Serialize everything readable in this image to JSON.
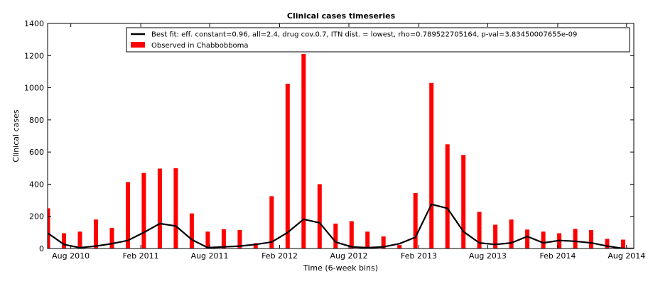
{
  "chart_data": {
    "type": "bar",
    "title": "Clinical cases timeseries",
    "xlabel": "Time (6-week bins)",
    "ylabel": "Clinical cases",
    "ylim": [
      0,
      1400
    ],
    "yticks": [
      0,
      200,
      400,
      600,
      800,
      1000,
      1200,
      1400
    ],
    "grid": false,
    "legend_position": "top-right",
    "date_range": [
      "2010-06-01",
      "2014-08-20"
    ],
    "xtick_labels": [
      {
        "label": "Aug 2010",
        "date": "2010-08-01"
      },
      {
        "label": "Feb 2011",
        "date": "2011-02-01"
      },
      {
        "label": "Aug 2011",
        "date": "2011-08-01"
      },
      {
        "label": "Feb 2012",
        "date": "2012-02-01"
      },
      {
        "label": "Aug 2012",
        "date": "2012-08-01"
      },
      {
        "label": "Feb 2013",
        "date": "2013-02-01"
      },
      {
        "label": "Aug 2013",
        "date": "2013-08-01"
      },
      {
        "label": "Feb 2014",
        "date": "2014-02-01"
      },
      {
        "label": "Aug 2014",
        "date": "2014-08-01"
      }
    ],
    "x": [
      "2010-06-02",
      "2010-07-14",
      "2010-08-25",
      "2010-10-06",
      "2010-11-17",
      "2010-12-29",
      "2011-02-09",
      "2011-03-23",
      "2011-05-04",
      "2011-06-15",
      "2011-07-27",
      "2011-09-07",
      "2011-10-19",
      "2011-11-30",
      "2012-01-11",
      "2012-02-22",
      "2012-04-04",
      "2012-05-16",
      "2012-06-27",
      "2012-08-08",
      "2012-09-19",
      "2012-10-31",
      "2012-12-12",
      "2013-01-23",
      "2013-03-06",
      "2013-04-17",
      "2013-05-29",
      "2013-07-10",
      "2013-08-21",
      "2013-10-02",
      "2013-11-13",
      "2013-12-25",
      "2014-02-05",
      "2014-03-19",
      "2014-04-30",
      "2014-06-11",
      "2014-07-23",
      "2014-09-03"
    ],
    "series": [
      {
        "name": "Observed in Chabbobboma",
        "color": "#ff0000",
        "values": [
          250,
          95,
          105,
          180,
          128,
          413,
          470,
          497,
          500,
          218,
          105,
          120,
          115,
          33,
          325,
          1025,
          1210,
          400,
          155,
          170,
          105,
          75,
          22,
          345,
          1030,
          648,
          582,
          228,
          148,
          180,
          118,
          105,
          95,
          122,
          115,
          60,
          55,
          10
        ]
      },
      {
        "name": "Best fit: eff. constant=0.96, all=2.4, drug cov.0.7, ITN dist. = lowest, rho=0.789522705164, p-val=3.83450007655e-09",
        "color": "#000000",
        "values": [
          95,
          25,
          5,
          15,
          30,
          50,
          100,
          155,
          140,
          55,
          5,
          10,
          15,
          25,
          40,
          100,
          182,
          160,
          40,
          10,
          5,
          10,
          30,
          70,
          275,
          250,
          105,
          35,
          25,
          35,
          75,
          35,
          50,
          45,
          35,
          15,
          0,
          0
        ]
      }
    ]
  }
}
